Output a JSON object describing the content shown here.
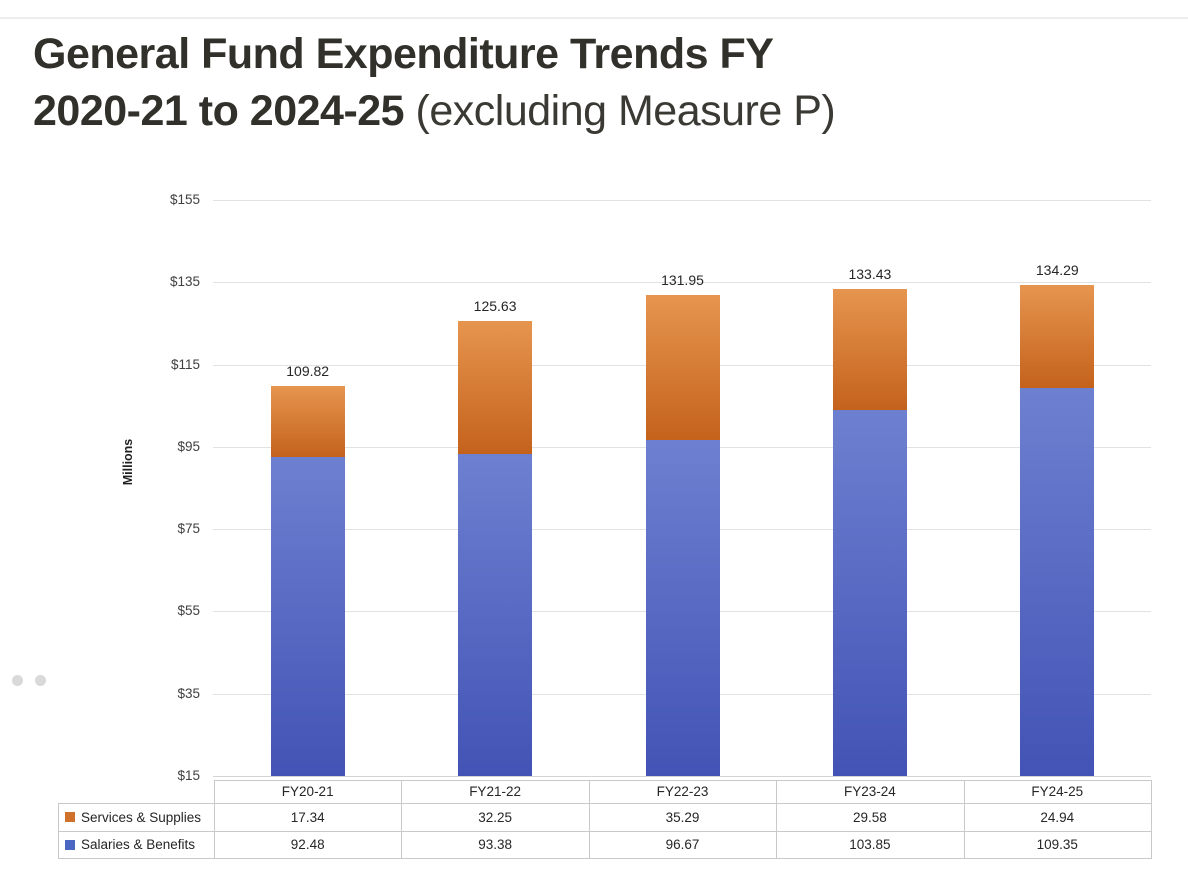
{
  "header": {
    "title_line1": "General Fund Expenditure Trends FY",
    "title_line2_bold": "2020-21 to 2024-25",
    "title_line2_regular": " (excluding Measure P)"
  },
  "pagination": {
    "dot_count": 2
  },
  "colors": {
    "services_solid": "#d0712b",
    "services_gradient_top": "#e6954f",
    "services_gradient_bottom": "#c4621c",
    "salaries_solid": "#4c66c4",
    "salaries_gradient_top": "#6d80d0",
    "salaries_gradient_bottom": "#4253b5",
    "gridline": "#e2e2e2",
    "table_border": "#c9c9c9"
  },
  "chart_data": {
    "type": "bar",
    "stacked": true,
    "title": "General Fund Expenditure Trends FY 2020-21 to 2024-25 (excluding Measure P)",
    "xlabel": "",
    "ylabel": "Millions",
    "ylim": [
      15,
      155
    ],
    "grid": true,
    "legend_position": "table-left",
    "categories": [
      "FY20-21",
      "FY21-22",
      "FY22-23",
      "FY23-24",
      "FY24-25"
    ],
    "series": [
      {
        "name": "Services & Supplies",
        "values": [
          17.34,
          32.25,
          35.29,
          29.58,
          24.94
        ]
      },
      {
        "name": "Salaries & Benefits",
        "values": [
          92.48,
          93.38,
          96.67,
          103.85,
          109.35
        ]
      }
    ],
    "data_labels": [
      "109.82",
      "125.63",
      "131.95",
      "133.43",
      "134.29"
    ],
    "y_ticks": [
      {
        "label": "$155",
        "value": 155
      },
      {
        "label": "$135",
        "value": 135
      },
      {
        "label": "$115",
        "value": 115
      },
      {
        "label": "$95",
        "value": 95
      },
      {
        "label": "$75",
        "value": 75
      },
      {
        "label": "$55",
        "value": 55
      },
      {
        "label": "$35",
        "value": 35
      },
      {
        "label": "$15",
        "value": 15
      }
    ]
  }
}
